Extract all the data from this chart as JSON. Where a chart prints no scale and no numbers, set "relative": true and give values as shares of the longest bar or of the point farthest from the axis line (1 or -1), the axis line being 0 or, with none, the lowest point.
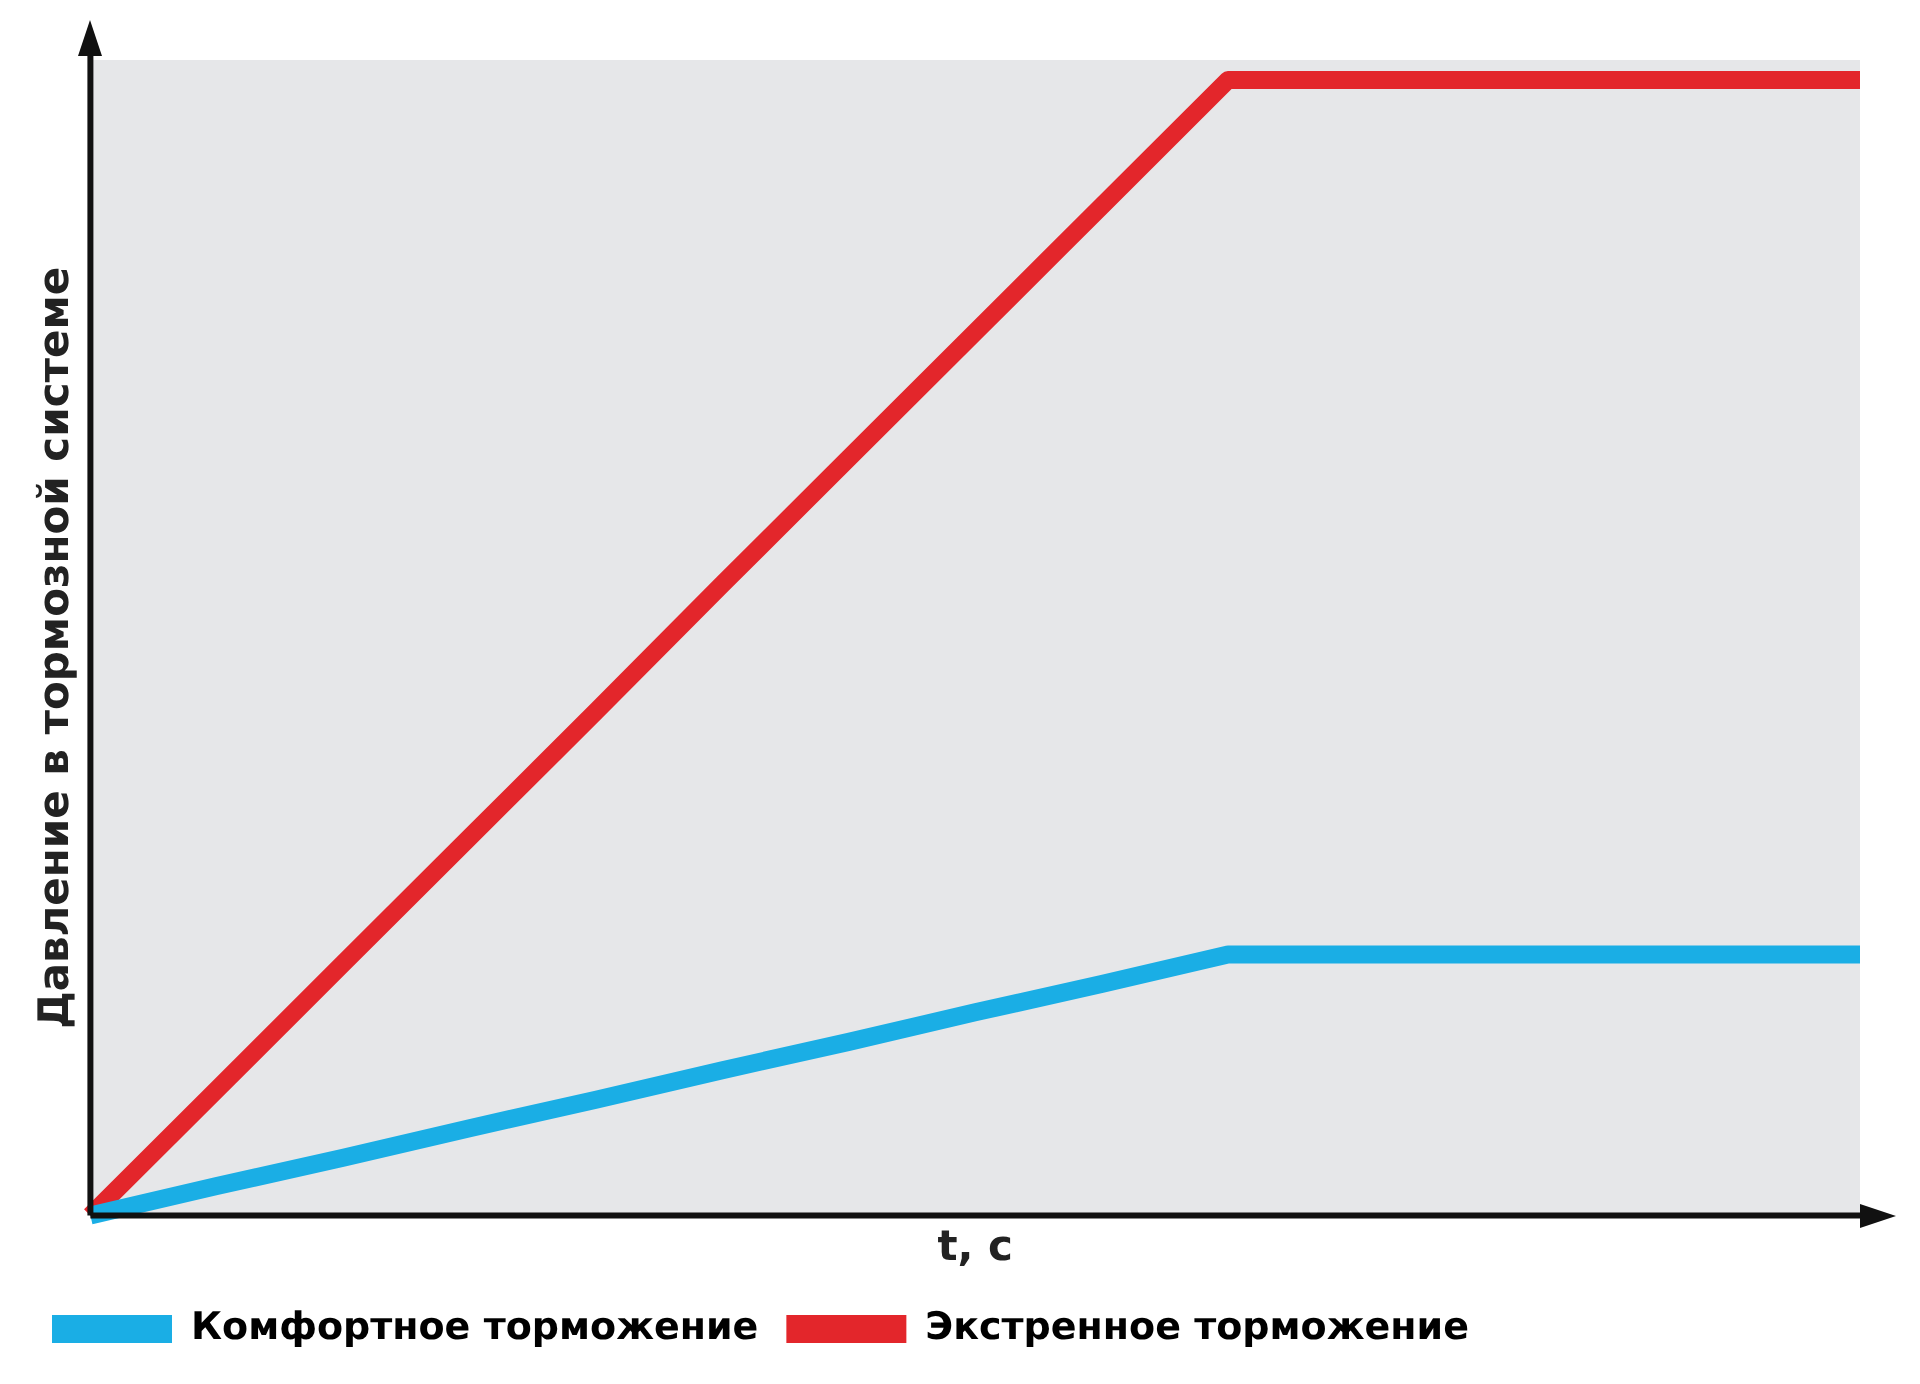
{
  "chart_data": {
    "type": "line",
    "relative": true,
    "xlabel": "t, c",
    "ylabel": "Давление в тормозной системе",
    "categories": [
      null,
      null,
      null,
      null,
      null,
      null,
      null,
      null,
      null,
      null,
      null,
      null,
      null,
      null,
      null
    ],
    "series": [
      {
        "name": "Комфортное торможение",
        "color": "#1aaee5",
        "values": [
          0,
          0.026,
          0.051,
          0.077,
          0.102,
          0.128,
          0.153,
          0.179,
          0.204,
          0.23,
          0.23,
          0.23,
          0.23,
          0.23,
          0.23
        ]
      },
      {
        "name": "Экстренное торможение",
        "color": "#e3262b",
        "values": [
          0,
          0.111,
          0.222,
          0.333,
          0.444,
          0.556,
          0.667,
          0.778,
          0.889,
          1,
          1,
          1,
          1,
          1,
          1
        ]
      }
    ],
    "legend": "bottom left",
    "grid": false,
    "marker": "none",
    "line_style": "solid"
  }
}
